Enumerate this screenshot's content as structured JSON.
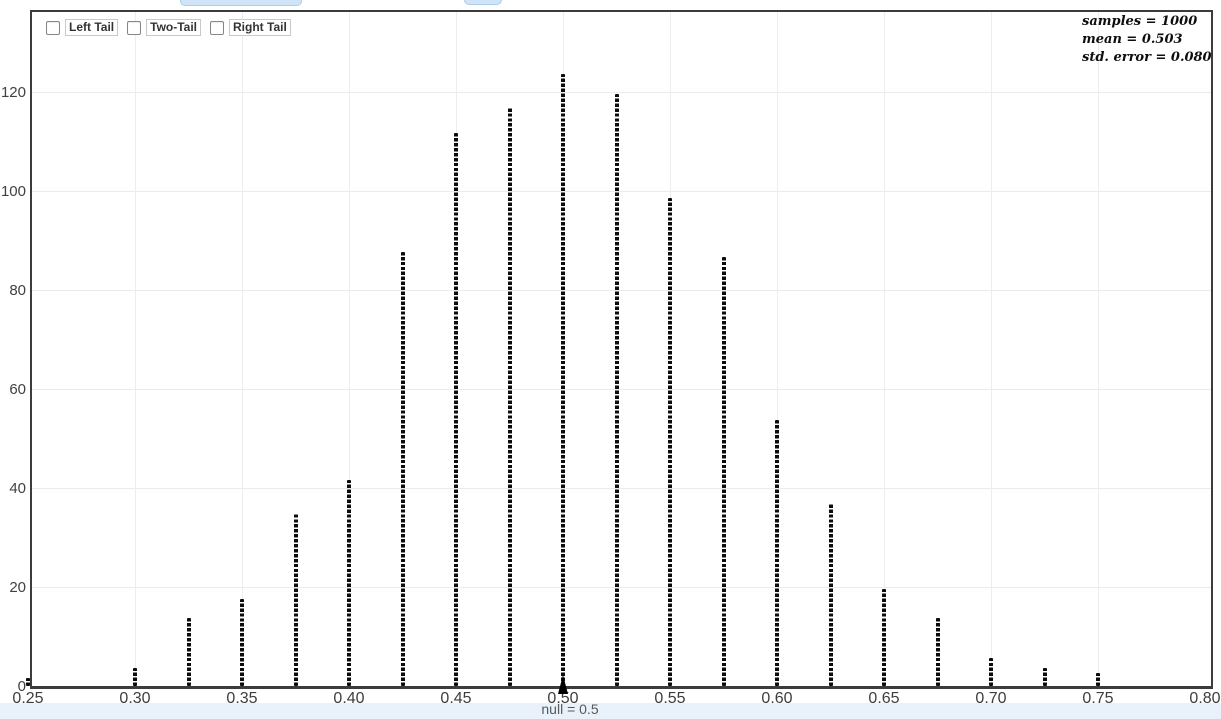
{
  "colors": {
    "dot": "#0c0c0c",
    "plot_border": "#3c3c3c",
    "gridline": "#ebebeb",
    "axis_label": "#3d3d3d",
    "null_label_color": "#595959",
    "bottom_strip": "#e9f2fb",
    "cutoff_button_fill": "#cfe4f6",
    "cutoff_button_border": "#aecdea"
  },
  "controls": {
    "checkboxes": [
      {
        "label": "Left Tail",
        "checked": false
      },
      {
        "label": "Two-Tail",
        "checked": false
      },
      {
        "label": "Right Tail",
        "checked": false
      }
    ]
  },
  "stats": {
    "lines": [
      "samples = 1000",
      "mean = 0.503",
      "std. error = 0.080"
    ]
  },
  "chart_data": {
    "type": "bar",
    "style": "dotplot",
    "title": "",
    "xlabel": "",
    "ylabel": "",
    "x": [
      0.25,
      0.3,
      0.325,
      0.35,
      0.375,
      0.4,
      0.425,
      0.45,
      0.475,
      0.5,
      0.525,
      0.55,
      0.575,
      0.6,
      0.625,
      0.65,
      0.675,
      0.7,
      0.725,
      0.75
    ],
    "counts": [
      2,
      4,
      14,
      18,
      35,
      42,
      88,
      112,
      117,
      124,
      120,
      99,
      87,
      54,
      37,
      20,
      14,
      6,
      4,
      3
    ],
    "x_ticks": [
      0.25,
      0.3,
      0.35,
      0.4,
      0.45,
      0.5,
      0.55,
      0.6,
      0.65,
      0.7,
      0.75,
      0.8
    ],
    "x_tick_labels": [
      "0.25",
      "0.30",
      "0.35",
      "0.40",
      "0.45",
      "0.50",
      "0.55",
      "0.60",
      "0.65",
      "0.70",
      "0.75",
      "0.80"
    ],
    "y_ticks": [
      0,
      20,
      40,
      60,
      80,
      100,
      120
    ],
    "xlim": [
      0.25,
      0.8
    ],
    "ylim": [
      0,
      136
    ],
    "grid": true,
    "legend": "none",
    "null_value": 0.5,
    "null_label": "null = 0.5",
    "samples": 1000,
    "mean": 0.503,
    "std_error": 0.08
  }
}
